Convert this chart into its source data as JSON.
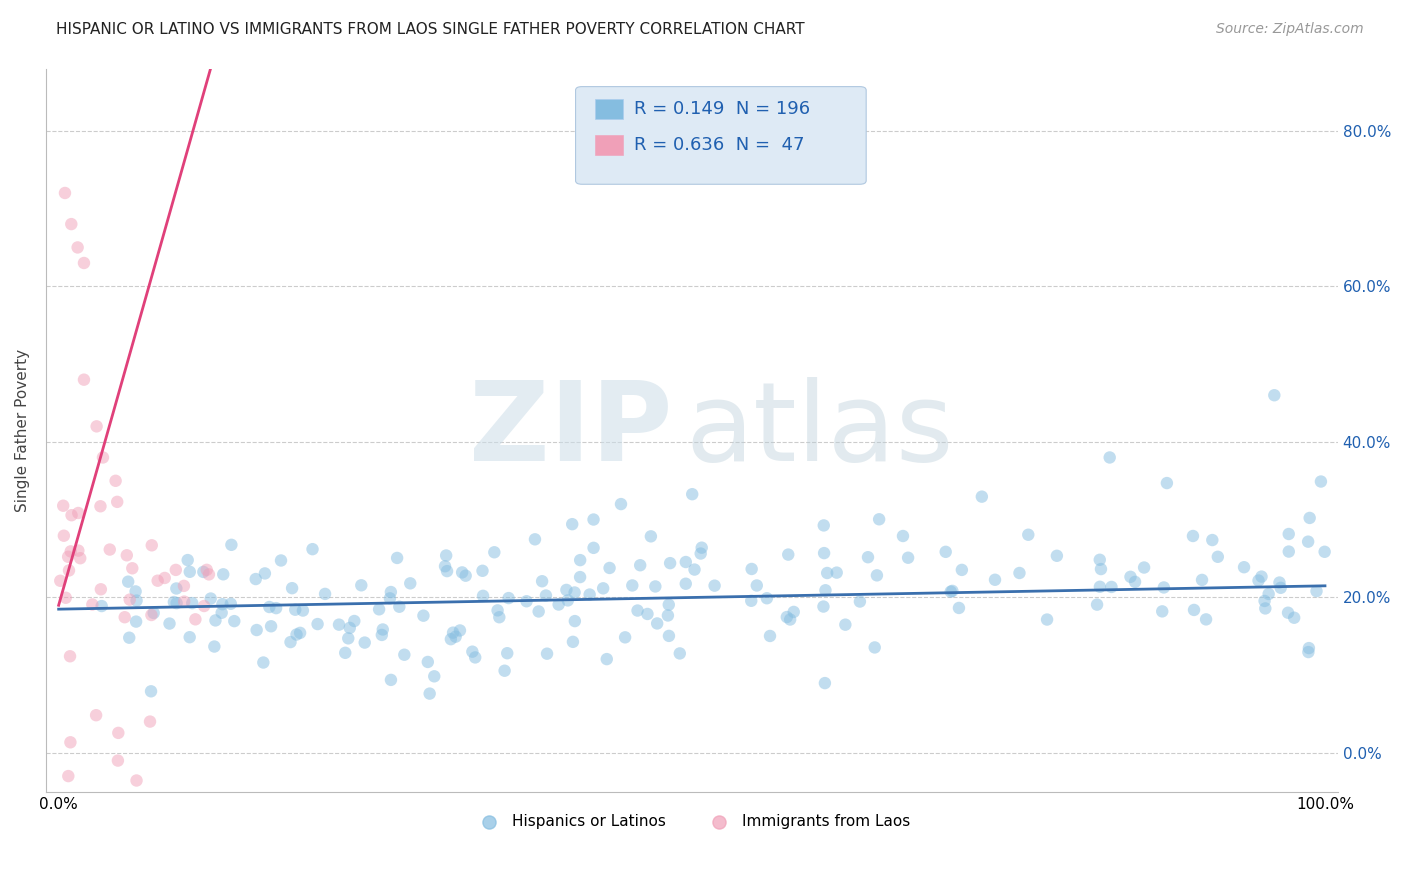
{
  "title": "HISPANIC OR LATINO VS IMMIGRANTS FROM LAOS SINGLE FATHER POVERTY CORRELATION CHART",
  "source": "Source: ZipAtlas.com",
  "ylabel": "Single Father Poverty",
  "series": [
    {
      "name": "Hispanics or Latinos",
      "R": 0.149,
      "N": 196,
      "color": "#85bde0",
      "line_color": "#3a6fad",
      "seed": 42
    },
    {
      "name": "Immigrants from Laos",
      "R": 0.636,
      "N": 47,
      "color": "#f0a0b8",
      "line_color": "#e0407a",
      "seed": 7
    }
  ],
  "xlim": [
    -0.01,
    1.01
  ],
  "ylim": [
    -0.05,
    0.88
  ],
  "yticks": [
    0.0,
    0.2,
    0.4,
    0.6,
    0.8
  ],
  "ytick_labels": [
    "0.0%",
    "20.0%",
    "40.0%",
    "60.0%",
    "80.0%"
  ],
  "xticks": [
    0.0,
    0.2,
    0.4,
    0.6,
    0.8,
    1.0
  ],
  "xtick_labels": [
    "0.0%",
    "",
    "",
    "",
    "",
    "100.0%"
  ],
  "grid_color": "#cccccc",
  "bg_color": "#ffffff",
  "legend_text_color": "#2060b0",
  "marker_size": 80,
  "marker_alpha": 0.5,
  "blue_line_y0": 0.185,
  "blue_line_y1": 0.215,
  "pink_line_x0": 0.0,
  "pink_line_x1": 0.12,
  "pink_line_y0": 0.19,
  "pink_line_y1": 0.88
}
